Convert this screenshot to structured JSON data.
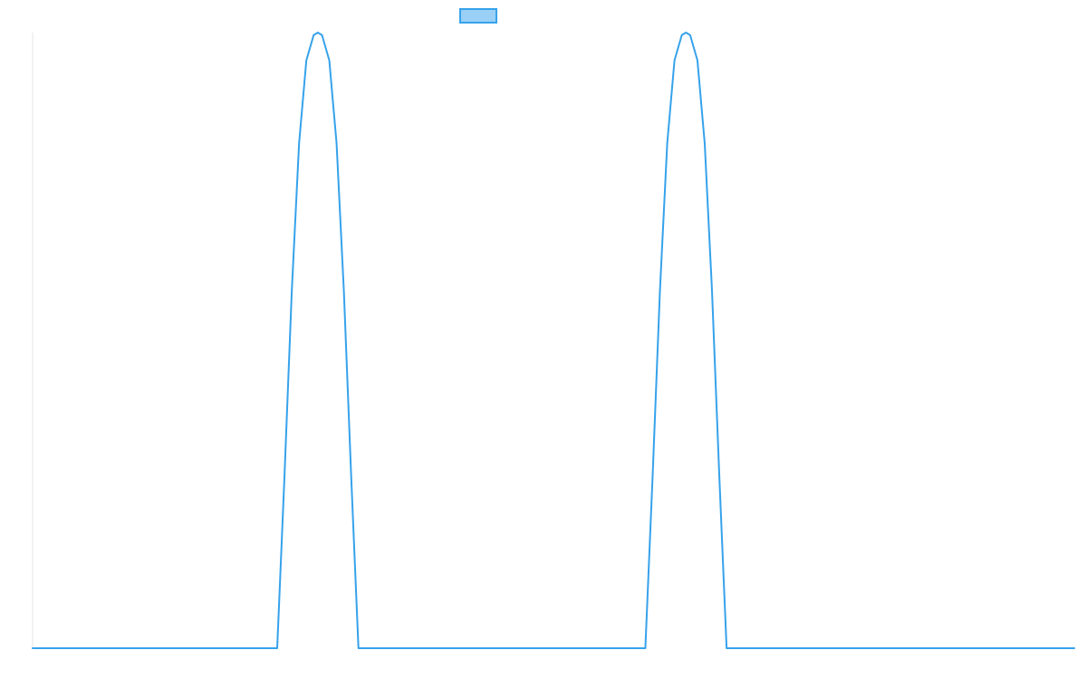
{
  "chart_data": {
    "type": "line",
    "title": "",
    "xlabel": "",
    "ylabel": "",
    "x_range": [
      0,
      1
    ],
    "ylim": [
      0,
      1
    ],
    "grid": false,
    "legend": {
      "placement": "top-center",
      "entries": [
        {
          "name": "",
          "swatch_fill": "#9ad0f5",
          "swatch_stroke": "#36a2eb"
        }
      ]
    },
    "series": [
      {
        "name": "",
        "color": "#36a2eb",
        "x": [
          0,
          0.2348,
          0.2418,
          0.2488,
          0.2558,
          0.2628,
          0.2698,
          0.2738,
          0.2778,
          0.2848,
          0.2918,
          0.2988,
          0.3058,
          0.3128,
          0.5882,
          0.5952,
          0.6022,
          0.6092,
          0.6162,
          0.6232,
          0.6272,
          0.6312,
          0.6382,
          0.6452,
          0.6522,
          0.6592,
          0.6662,
          1
        ],
        "y": [
          0,
          0,
          0.28,
          0.58,
          0.82,
          0.955,
          0.996,
          1,
          0.996,
          0.955,
          0.82,
          0.58,
          0.28,
          0,
          0,
          0.28,
          0.58,
          0.82,
          0.955,
          0.996,
          1,
          0.996,
          0.955,
          0.82,
          0.58,
          0.28,
          0,
          0
        ]
      }
    ]
  }
}
